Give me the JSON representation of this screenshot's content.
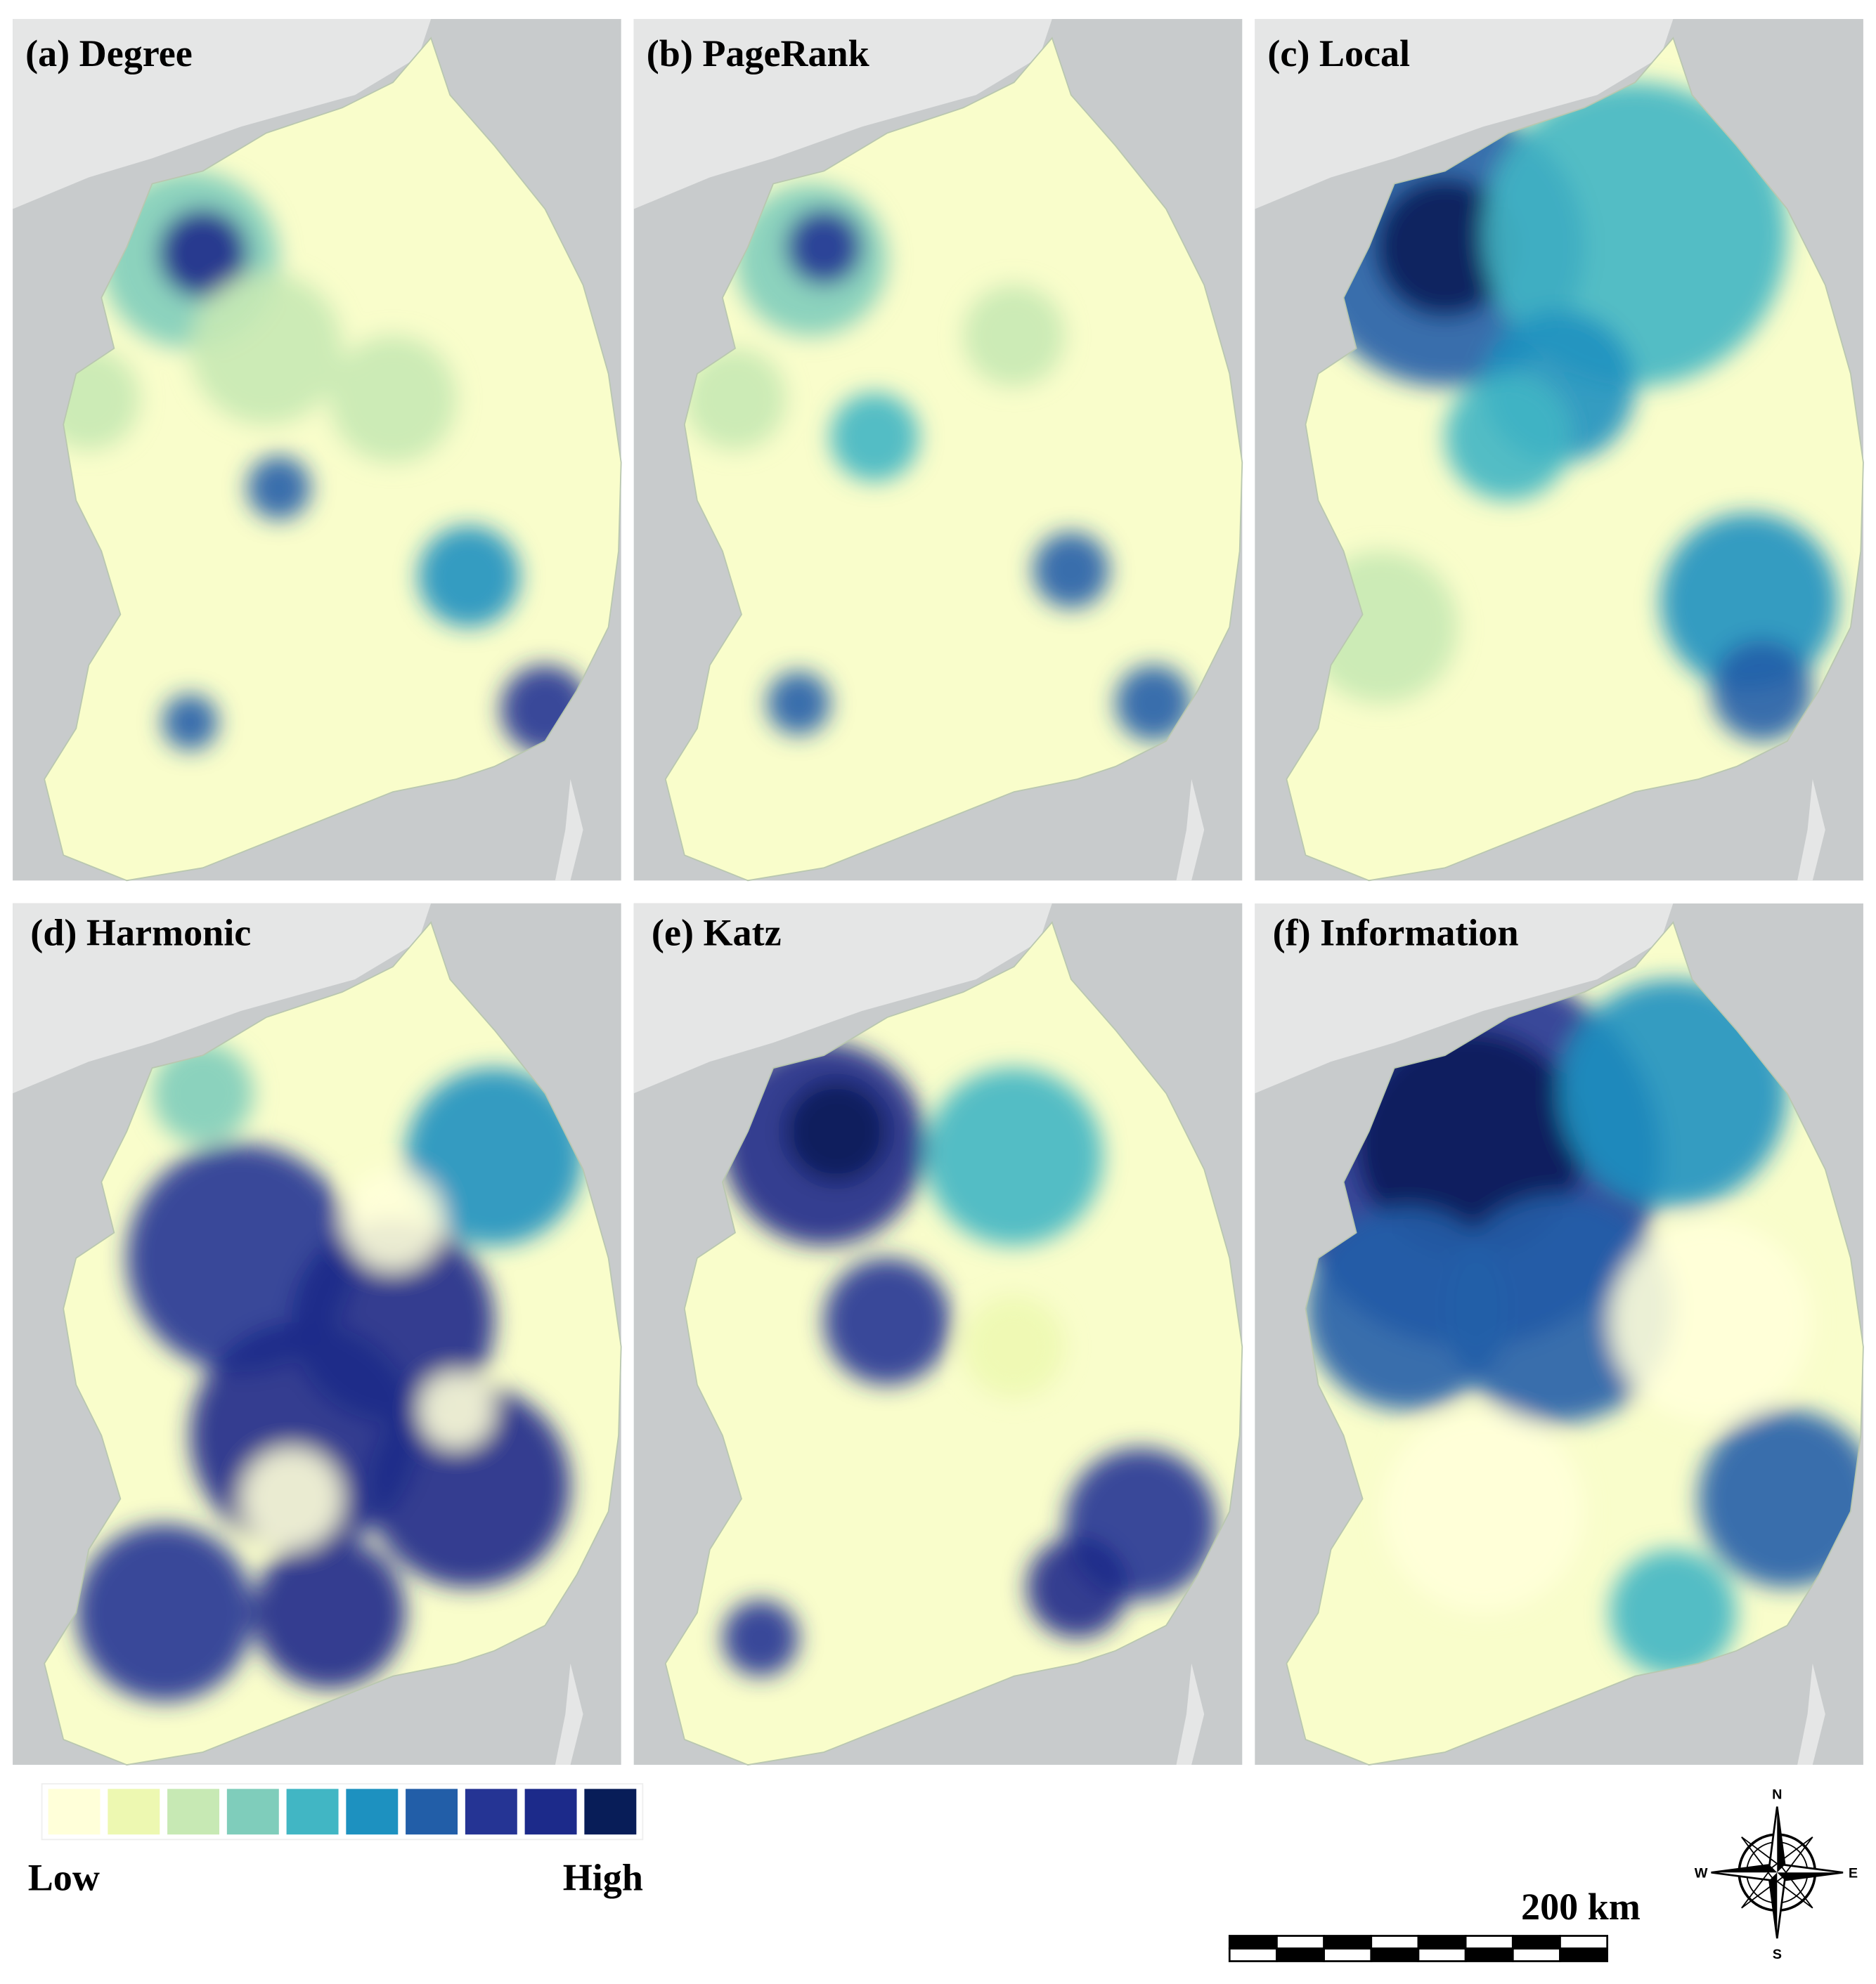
{
  "panels": [
    {
      "title": "(a) Degree"
    },
    {
      "title": "(b) PageRank"
    },
    {
      "title": "(c) Local"
    },
    {
      "title": "(d) Harmonic"
    },
    {
      "title": "(e) Katz"
    },
    {
      "title": "(f) Information"
    }
  ],
  "legend": {
    "colors": [
      "#ffffd9",
      "#edf8b1",
      "#c7e9b4",
      "#7fcdbb",
      "#41b6c4",
      "#1d91c0",
      "#225ea8",
      "#253494",
      "#1c2a8a",
      "#081d58"
    ],
    "low": "Low",
    "high": "High"
  },
  "scale_bar": {
    "label": "200 km"
  },
  "compass": {
    "n": "N",
    "e": "E",
    "s": "S",
    "w": "W"
  }
}
